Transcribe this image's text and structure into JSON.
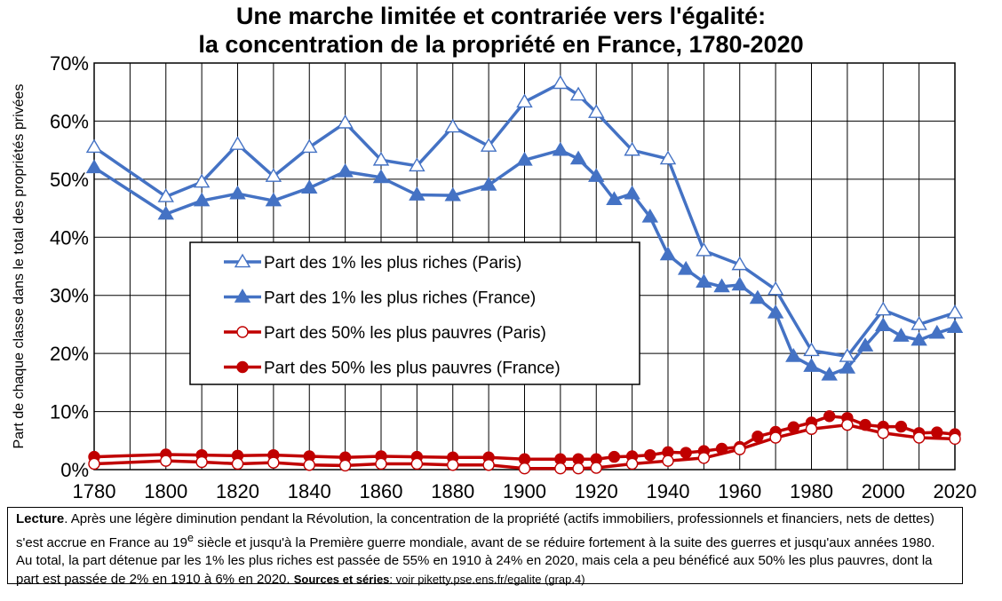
{
  "chart_data": {
    "type": "line",
    "title": "Une marche limitée et contrariée vers l'égalité:",
    "subtitle": "la concentration de la propriété en France, 1780-2020",
    "ylabel": "Part de chaque classe dans le total des propriétés privées",
    "xlabel": "",
    "xlim": [
      1780,
      2020
    ],
    "ylim": [
      0,
      70
    ],
    "x_ticks": [
      1780,
      1800,
      1820,
      1840,
      1860,
      1880,
      1900,
      1920,
      1940,
      1960,
      1980,
      2000,
      2020
    ],
    "y_ticks": [
      "0%",
      "10%",
      "20%",
      "30%",
      "40%",
      "50%",
      "60%",
      "70%"
    ],
    "grid": "vertical every 10 years, horizontal every 10%",
    "legend_position": "center-left",
    "series": [
      {
        "name": "Part des 1% les plus riches (Paris)",
        "color": "#4472C4",
        "marker": "open-triangle",
        "x": [
          1780,
          1800,
          1810,
          1820,
          1830,
          1840,
          1850,
          1860,
          1870,
          1880,
          1890,
          1900,
          1910,
          1915,
          1920,
          1930,
          1940,
          1950,
          1960,
          1970,
          1980,
          1990,
          2000,
          2010,
          2020
        ],
        "y": [
          55.5,
          47,
          49.5,
          56,
          50.5,
          55.5,
          59.7,
          53.3,
          52.3,
          59,
          55.7,
          63.3,
          66.5,
          64.5,
          61.5,
          55,
          53.5,
          37.7,
          35.3,
          31,
          20.5,
          19.5,
          27.5,
          25,
          27
        ]
      },
      {
        "name": "Part des 1% les plus riches (France)",
        "color": "#4472C4",
        "marker": "filled-triangle",
        "x": [
          1780,
          1800,
          1810,
          1820,
          1830,
          1840,
          1850,
          1860,
          1870,
          1880,
          1890,
          1900,
          1910,
          1915,
          1920,
          1925,
          1930,
          1935,
          1940,
          1945,
          1950,
          1955,
          1960,
          1965,
          1970,
          1975,
          1980,
          1985,
          1990,
          1995,
          2000,
          2005,
          2010,
          2015,
          2020
        ],
        "y": [
          52,
          44,
          46.3,
          47.5,
          46.3,
          48.5,
          51.3,
          50.3,
          47.3,
          47.2,
          49,
          53.3,
          55,
          53.5,
          50.5,
          46.5,
          47.5,
          43.5,
          37,
          34.5,
          32.3,
          31.5,
          31.8,
          29.5,
          27,
          19.5,
          17.8,
          16.3,
          17.5,
          21.3,
          24.8,
          23,
          22.3,
          23.5,
          24.5
        ]
      },
      {
        "name": "Part des 50% les plus pauvres (Paris)",
        "color": "#C00000",
        "marker": "open-circle",
        "x": [
          1780,
          1800,
          1810,
          1820,
          1830,
          1840,
          1850,
          1860,
          1870,
          1880,
          1890,
          1900,
          1910,
          1915,
          1920,
          1930,
          1940,
          1950,
          1960,
          1970,
          1980,
          1990,
          2000,
          2010,
          2020
        ],
        "y": [
          1,
          1.5,
          1.3,
          1,
          1.2,
          0.8,
          0.7,
          1,
          1,
          0.8,
          0.8,
          0.2,
          0.2,
          0.2,
          0.3,
          1,
          1.5,
          2,
          3.5,
          5.5,
          7,
          7.7,
          6.3,
          5.5,
          5.3
        ]
      },
      {
        "name": "Part des 50% les plus pauvres (France)",
        "color": "#C00000",
        "marker": "filled-circle",
        "x": [
          1780,
          1800,
          1810,
          1820,
          1830,
          1840,
          1850,
          1860,
          1870,
          1880,
          1890,
          1900,
          1910,
          1915,
          1920,
          1925,
          1930,
          1935,
          1940,
          1945,
          1950,
          1955,
          1960,
          1965,
          1970,
          1975,
          1980,
          1985,
          1990,
          1995,
          2000,
          2005,
          2010,
          2015,
          2020
        ],
        "y": [
          2.2,
          2.6,
          2.5,
          2.4,
          2.5,
          2.3,
          2.1,
          2.3,
          2.2,
          2.1,
          2.1,
          1.8,
          1.8,
          1.8,
          1.8,
          2.2,
          2.3,
          2.5,
          3,
          2.9,
          3.2,
          3.6,
          3.9,
          5.7,
          6.5,
          7.3,
          8.1,
          9.2,
          8.9,
          7.7,
          7.4,
          7.4,
          6.3,
          6.4,
          6.1
        ]
      }
    ]
  },
  "note": {
    "lead": "Lecture",
    "text_before_sup": ". Après une légère diminution pendant la Révolution, la concentration de la propriété (actifs immobiliers, professionnels et financiers, nets de dettes) s'est accrue en France au 19",
    "sup": "e",
    "text_after_sup": " siècle et jusqu'à la Première guerre mondiale, avant de se réduire fortement à la suite des guerres et jusqu'aux années 1980. Au total, la part détenue par les 1% les plus riches est passée de 55% en 1910 à 24% en 2020, mais cela a peu bénéficé aux 50% les plus pauvres, dont la part est passée de 2% en 1910 à 6% en 2020. ",
    "sources_label": "Sources et séries",
    "sources_text": ": voir piketty.pse.ens.fr/egalite (grap.4)"
  }
}
